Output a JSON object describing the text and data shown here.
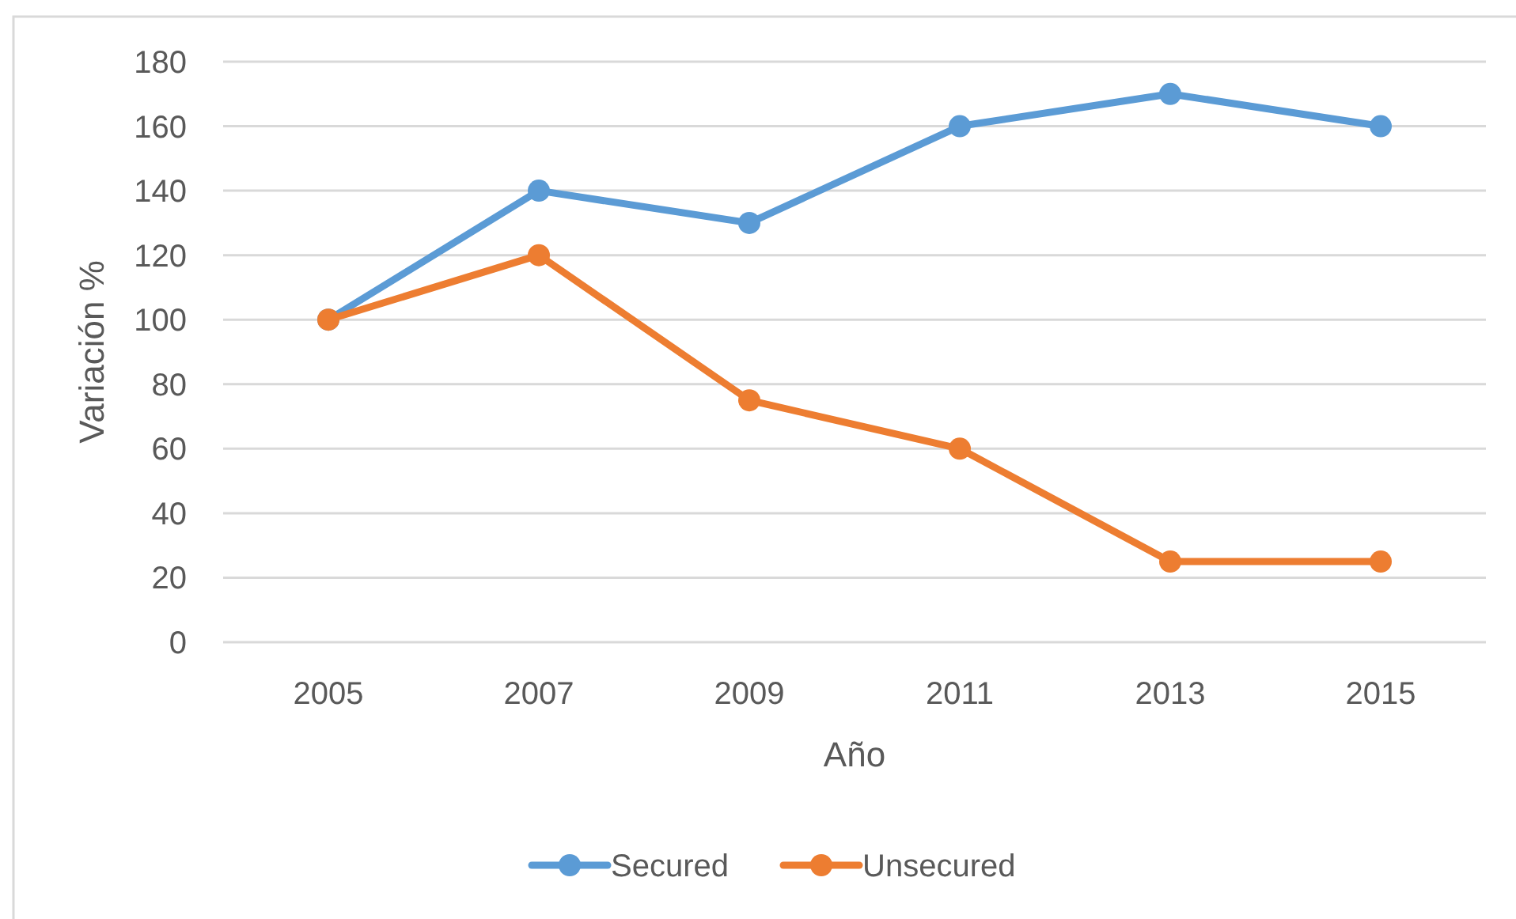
{
  "chart_data": {
    "type": "line",
    "categories": [
      "2005",
      "2007",
      "2009",
      "2011",
      "2013",
      "2015"
    ],
    "series": [
      {
        "name": "Secured",
        "color": "#5b9bd5",
        "values": [
          100,
          140,
          130,
          160,
          170,
          160
        ]
      },
      {
        "name": "Unsecured",
        "color": "#ed7d31",
        "values": [
          100,
          120,
          75,
          60,
          25,
          25
        ]
      }
    ],
    "xlabel": "Año",
    "ylabel": "Variación %",
    "ylim": [
      0,
      180
    ],
    "yticks": [
      0,
      20,
      40,
      60,
      80,
      100,
      120,
      140,
      160,
      180
    ],
    "grid": "y",
    "legend": "bottom",
    "marker": "circle",
    "line_style": "solid"
  }
}
